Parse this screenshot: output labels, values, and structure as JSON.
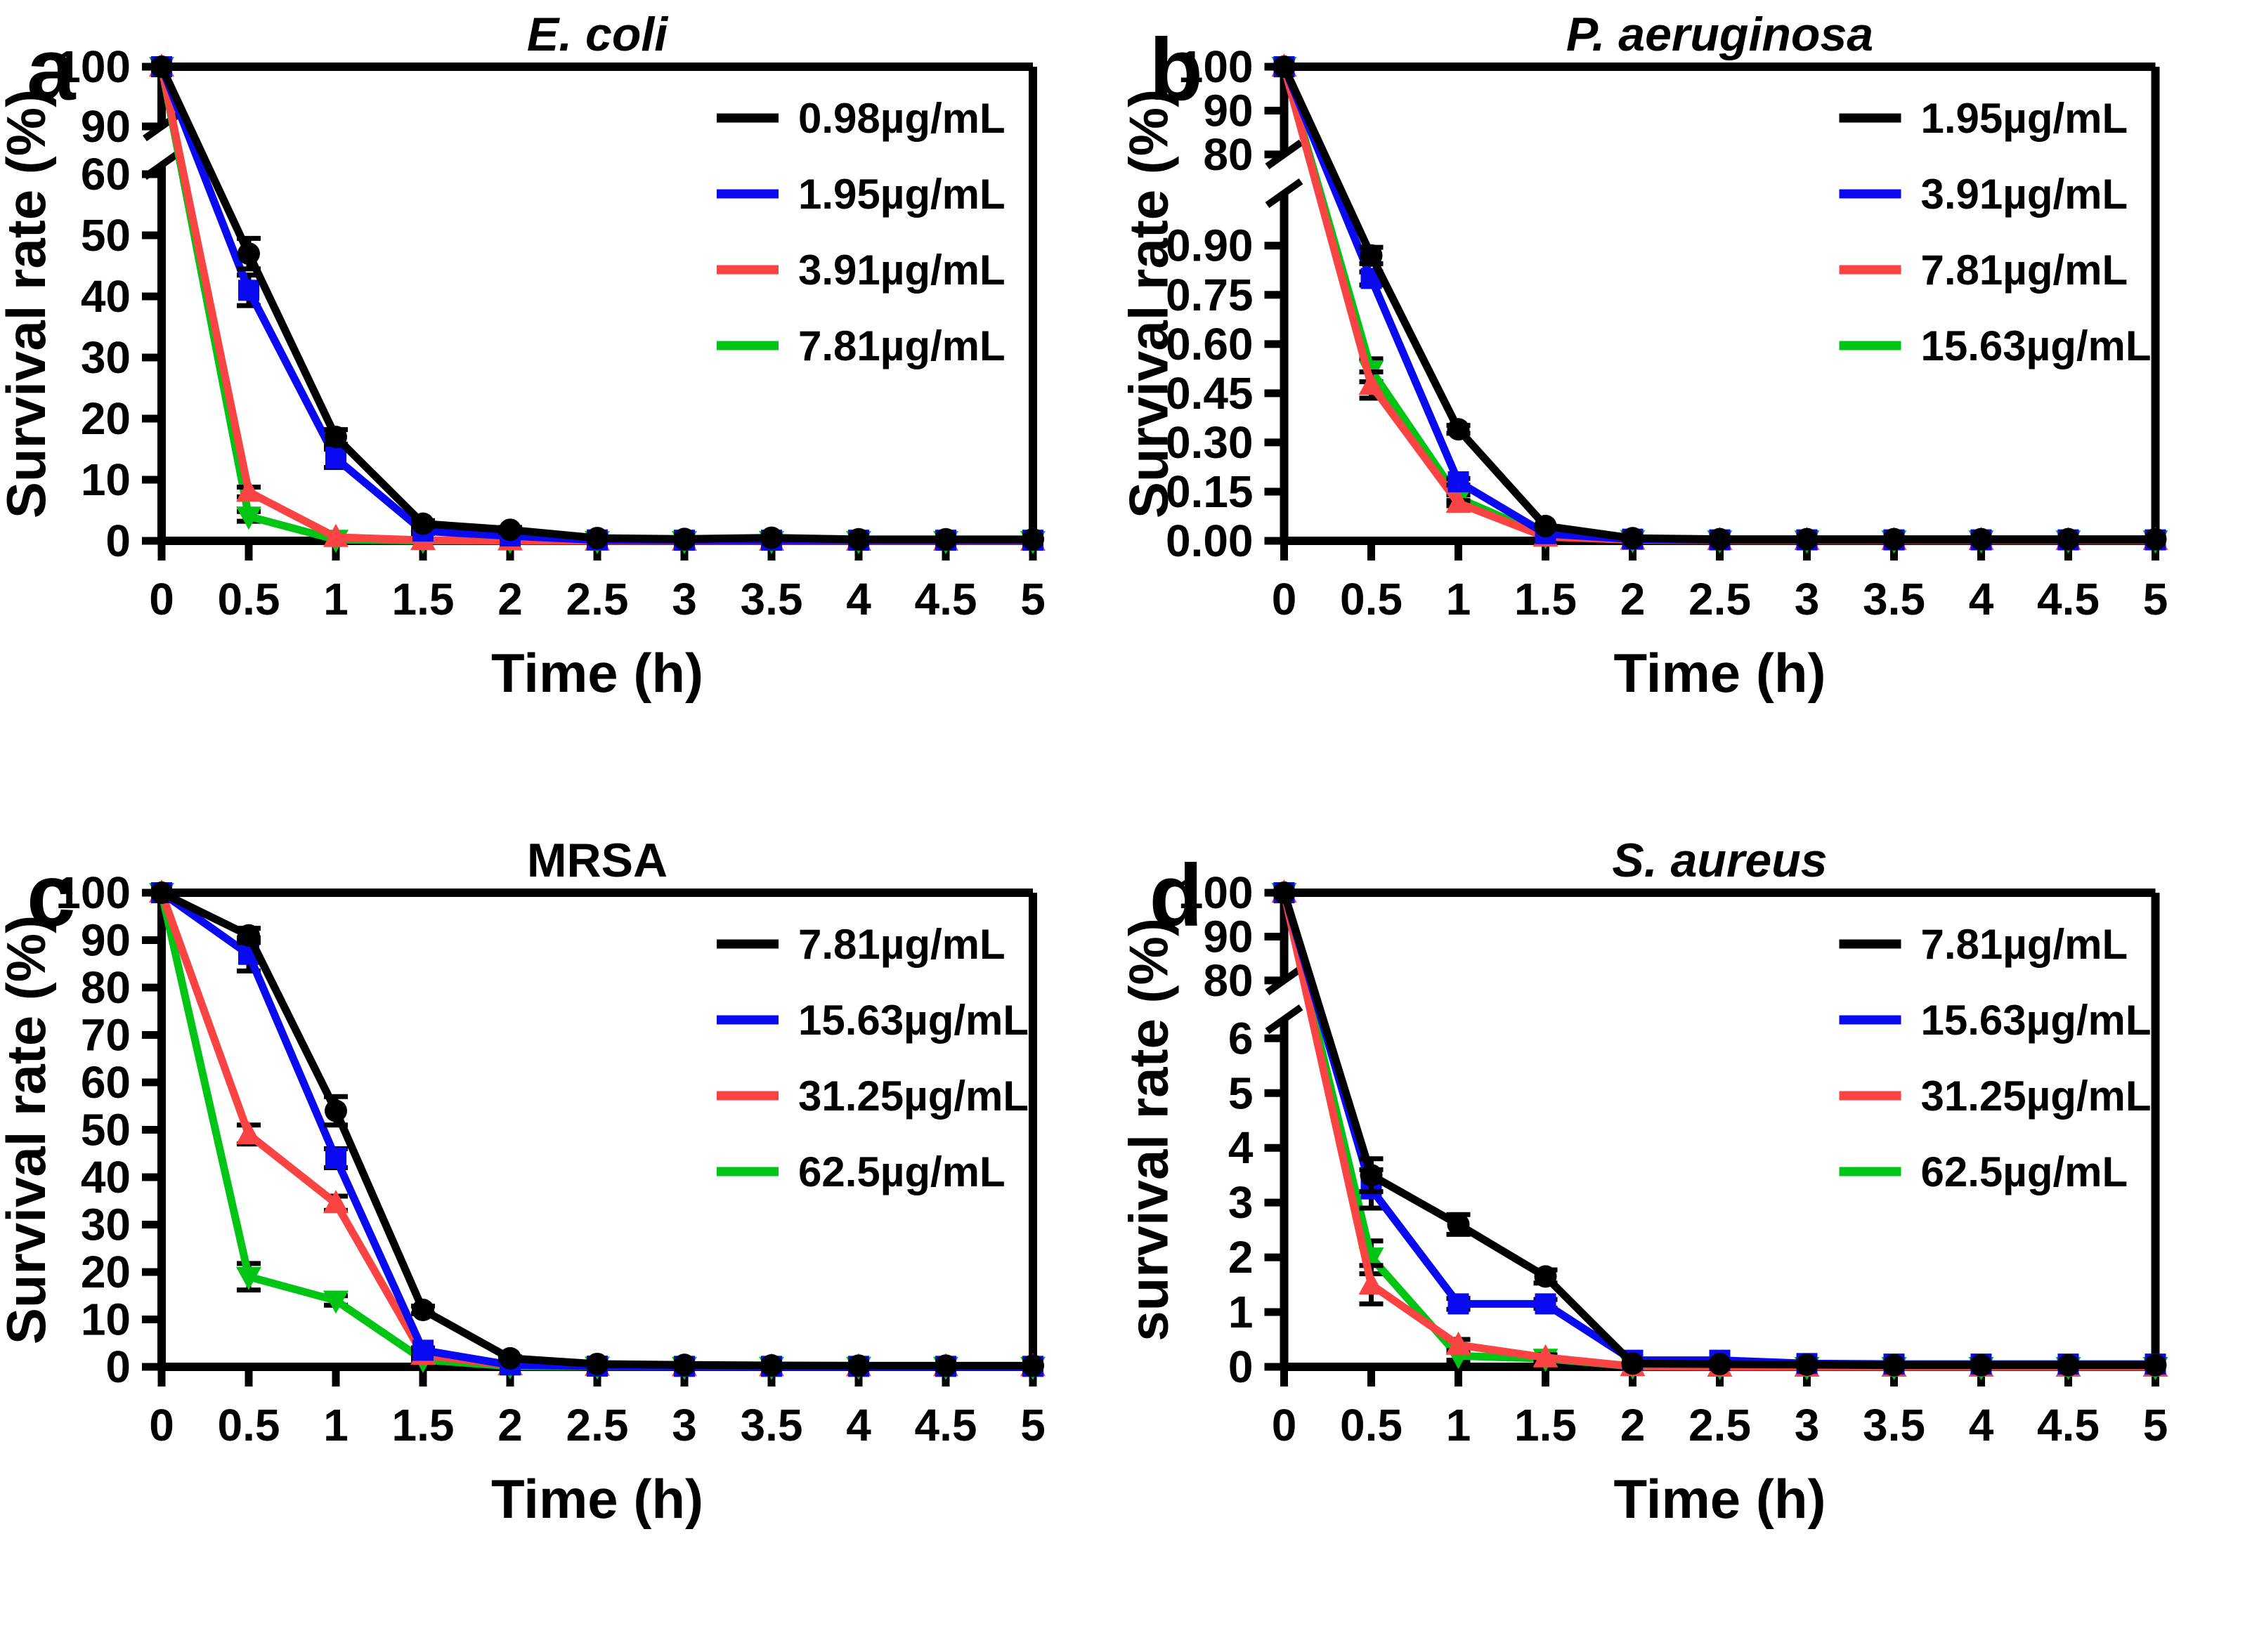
{
  "figure": {
    "background": "#ffffff"
  },
  "chart_data": [
    {
      "type": "line",
      "panel_letter": "a",
      "title": "E. coli",
      "title_style": "italic",
      "xlabel": "Time (h)",
      "ylabel": "Survival rate (%)",
      "xlim": [
        0,
        5
      ],
      "x": [
        0,
        0.5,
        1,
        1.5,
        2,
        2.5,
        3,
        3.5,
        4,
        4.5,
        5
      ],
      "x_tick_labels": [
        "0",
        "0.5",
        "1",
        "1.5",
        "2",
        "2.5",
        "3",
        "3.5",
        "4",
        "4.5",
        "5"
      ],
      "y_axis_break": true,
      "y_segments": [
        {
          "range": [
            90,
            100
          ],
          "frac": 0.126,
          "ticks": [
            100,
            90
          ],
          "tick_labels": [
            "100",
            "90"
          ]
        },
        {
          "range": [
            0,
            61.5
          ],
          "frac": 0.7926,
          "ticks": [
            60,
            50,
            40,
            30,
            20,
            10,
            0
          ],
          "tick_labels": [
            "60",
            "50",
            "40",
            "30",
            "20",
            "10",
            "0"
          ]
        }
      ],
      "legend_position": "top-right",
      "series": [
        {
          "label": "0.98µg/mL",
          "color": "#000000",
          "marker": "circle",
          "values": [
            100,
            47,
            17,
            2.8,
            1.8,
            0.45,
            0.3,
            0.5,
            0.25,
            0.25,
            0.25
          ],
          "errors": [
            0,
            2.5,
            1.2,
            0.5,
            0.4,
            0,
            0,
            0,
            0,
            0,
            0
          ]
        },
        {
          "label": "1.95µg/mL",
          "color": "#0a0af0",
          "marker": "square",
          "values": [
            100,
            41,
            13.5,
            1.6,
            0.8,
            0.15,
            0.1,
            0.1,
            0.1,
            0.1,
            0.1
          ],
          "errors": [
            0,
            2.5,
            1.5,
            0.4,
            0,
            0,
            0,
            0,
            0,
            0,
            0
          ]
        },
        {
          "label": "3.91µg/mL",
          "color": "#fa4343",
          "marker": "triangle-up",
          "values": [
            100,
            8,
            0.6,
            0.1,
            0.05,
            0,
            0,
            0,
            0,
            0,
            0
          ],
          "errors": [
            0,
            0.8,
            0,
            0,
            0,
            0,
            0,
            0,
            0,
            0,
            0
          ]
        },
        {
          "label": "7.81µg/mL",
          "color": "#00c514",
          "marker": "triangle-down",
          "values": [
            100,
            4,
            0.2,
            0.05,
            0,
            0,
            0,
            0,
            0,
            0,
            0
          ],
          "errors": [
            0,
            0.8,
            0,
            0,
            0,
            0,
            0,
            0,
            0,
            0,
            0
          ]
        }
      ]
    },
    {
      "type": "line",
      "panel_letter": "b",
      "title": "P. aeruginosa",
      "title_style": "italic",
      "xlabel": "Time (h)",
      "ylabel": "Survival rate (%)",
      "xlim": [
        0,
        5
      ],
      "x": [
        0,
        0.5,
        1,
        1.5,
        2,
        2.5,
        3,
        3.5,
        4,
        4.5,
        5
      ],
      "x_tick_labels": [
        "0",
        "0.5",
        "1",
        "1.5",
        "2",
        "2.5",
        "3",
        "3.5",
        "4",
        "4.5",
        "5"
      ],
      "y_axis_break": true,
      "y_segments": [
        {
          "range": [
            80,
            100
          ],
          "frac": 0.185,
          "ticks": [
            100,
            90,
            80
          ],
          "tick_labels": [
            "100",
            "90",
            "80"
          ]
        },
        {
          "range": [
            0,
            1.06
          ],
          "frac": 0.7333,
          "ticks": [
            0.9,
            0.75,
            0.6,
            0.45,
            0.3,
            0.15,
            0
          ],
          "tick_labels": [
            "0.90",
            "0.75",
            "0.60",
            "0.45",
            "0.30",
            "0.15",
            "0.00"
          ]
        }
      ],
      "legend_position": "top-right",
      "series": [
        {
          "label": "1.95µg/mL",
          "color": "#000000",
          "marker": "circle",
          "values": [
            100,
            0.87,
            0.34,
            0.045,
            0.008,
            0.005,
            0.005,
            0.005,
            0.005,
            0.005,
            0.005
          ],
          "errors": [
            0,
            0.025,
            0.012,
            0,
            0,
            0,
            0,
            0,
            0,
            0,
            0
          ]
        },
        {
          "label": "3.91µg/mL",
          "color": "#0a0af0",
          "marker": "square",
          "values": [
            100,
            0.8,
            0.18,
            0.022,
            0.005,
            0.003,
            0.003,
            0.003,
            0.003,
            0.003,
            0.003
          ],
          "errors": [
            0,
            0.02,
            0.01,
            0,
            0,
            0,
            0,
            0,
            0,
            0,
            0
          ]
        },
        {
          "label": "7.81µg/mL",
          "color": "#fa4343",
          "marker": "triangle-up",
          "values": [
            100,
            0.475,
            0.115,
            0.012,
            0.003,
            0.002,
            0.002,
            0.002,
            0.002,
            0.002,
            0.002
          ],
          "errors": [
            0,
            0.04,
            0.008,
            0,
            0,
            0,
            0,
            0,
            0,
            0,
            0
          ]
        },
        {
          "label": "15.63µg/mL",
          "color": "#00c514",
          "marker": "triangle-down",
          "values": [
            100,
            0.52,
            0.13,
            0.015,
            0.003,
            0.002,
            0.002,
            0.002,
            0.002,
            0.002,
            0.002
          ],
          "errors": [
            0,
            0.035,
            0.01,
            0,
            0,
            0,
            0,
            0,
            0,
            0,
            0
          ]
        }
      ]
    },
    {
      "type": "line",
      "panel_letter": "c",
      "title": "MRSA",
      "title_style": "normal",
      "xlabel": "Time (h)",
      "ylabel": "Survival rate (%)",
      "xlim": [
        0,
        5
      ],
      "x": [
        0,
        0.5,
        1,
        1.5,
        2,
        2.5,
        3,
        3.5,
        4,
        4.5,
        5
      ],
      "x_tick_labels": [
        "0",
        "0.5",
        "1",
        "1.5",
        "2",
        "2.5",
        "3",
        "3.5",
        "4",
        "4.5",
        "5"
      ],
      "y_axis_break": false,
      "y_segments": [
        {
          "range": [
            0,
            100
          ],
          "frac": 1.0,
          "ticks": [
            100,
            90,
            80,
            70,
            60,
            50,
            40,
            30,
            20,
            10,
            0
          ],
          "tick_labels": [
            "100",
            "90",
            "80",
            "70",
            "60",
            "50",
            "40",
            "30",
            "20",
            "10",
            "0"
          ]
        }
      ],
      "legend_position": "top-right",
      "series": [
        {
          "label": "7.81µg/mL",
          "color": "#000000",
          "marker": "circle",
          "values": [
            100,
            91,
            54,
            12,
            1.8,
            0.6,
            0.4,
            0.3,
            0.25,
            0.25,
            0.25
          ],
          "errors": [
            0,
            1.5,
            3,
            0.8,
            0.3,
            0,
            0,
            0,
            0,
            0,
            0
          ]
        },
        {
          "label": "15.63µg/mL",
          "color": "#0a0af0",
          "marker": "square",
          "values": [
            100,
            87,
            44,
            3.5,
            0.4,
            0.15,
            0.1,
            0.1,
            0.1,
            0.1,
            0.1
          ],
          "errors": [
            0,
            3.5,
            2,
            0.5,
            0,
            0,
            0,
            0,
            0,
            0,
            0
          ]
        },
        {
          "label": "31.25µg/mL",
          "color": "#fa4343",
          "marker": "triangle-up",
          "values": [
            100,
            49,
            34.5,
            2.5,
            0.3,
            0.15,
            0.1,
            0.1,
            0.1,
            0.1,
            0.1
          ],
          "errors": [
            0,
            2,
            1.5,
            0.4,
            0,
            0,
            0,
            0,
            0,
            0,
            0
          ]
        },
        {
          "label": "62.5µg/mL",
          "color": "#00c514",
          "marker": "triangle-down",
          "values": [
            100,
            19,
            14,
            1.5,
            0.15,
            0.1,
            0.05,
            0.05,
            0.05,
            0.05,
            0.05
          ],
          "errors": [
            0,
            2.8,
            1,
            0.3,
            0,
            0,
            0,
            0,
            0,
            0,
            0
          ]
        }
      ]
    },
    {
      "type": "line",
      "panel_letter": "d",
      "title": "S. aureus",
      "title_style": "italic",
      "xlabel": "Time (h)",
      "ylabel": "survival rate (%)",
      "xlim": [
        0,
        5
      ],
      "x": [
        0,
        0.5,
        1,
        1.5,
        2,
        2.5,
        3,
        3.5,
        4,
        4.5,
        5
      ],
      "x_tick_labels": [
        "0",
        "0.5",
        "1",
        "1.5",
        "2",
        "2.5",
        "3",
        "3.5",
        "4",
        "4.5",
        "5"
      ],
      "y_axis_break": true,
      "y_segments": [
        {
          "range": [
            80,
            100
          ],
          "frac": 0.185,
          "ticks": [
            100,
            90,
            80
          ],
          "tick_labels": [
            "100",
            "90",
            "80"
          ]
        },
        {
          "range": [
            0,
            6.35
          ],
          "frac": 0.7333,
          "ticks": [
            6,
            5,
            4,
            3,
            2,
            1,
            0
          ],
          "tick_labels": [
            "6",
            "5",
            "4",
            "3",
            "2",
            "1",
            "0"
          ]
        }
      ],
      "legend_position": "top-right",
      "series": [
        {
          "label": "7.81µg/mL",
          "color": "#000000",
          "marker": "circle",
          "values": [
            100,
            3.5,
            2.6,
            1.65,
            0.06,
            0.05,
            0.04,
            0.03,
            0.03,
            0.03,
            0.03
          ],
          "errors": [
            0,
            0.3,
            0.18,
            0.12,
            0,
            0,
            0,
            0,
            0,
            0,
            0
          ]
        },
        {
          "label": "15.63µg/mL",
          "color": "#0a0af0",
          "marker": "square",
          "values": [
            100,
            3.25,
            1.15,
            1.15,
            0.12,
            0.12,
            0.06,
            0.05,
            0.05,
            0.05,
            0.05
          ],
          "errors": [
            0,
            0.35,
            0.1,
            0.08,
            0,
            0,
            0,
            0,
            0,
            0,
            0
          ]
        },
        {
          "label": "31.25µg/mL",
          "color": "#fa4343",
          "marker": "triangle-up",
          "values": [
            100,
            1.5,
            0.4,
            0.17,
            0.01,
            0,
            0,
            0,
            0,
            0,
            0
          ],
          "errors": [
            0,
            0.35,
            0.1,
            0.05,
            0,
            0,
            0,
            0,
            0,
            0,
            0
          ]
        },
        {
          "label": "62.5µg/mL",
          "color": "#00c514",
          "marker": "triangle-down",
          "values": [
            100,
            2.0,
            0.2,
            0.15,
            0.01,
            0,
            0,
            0,
            0,
            0,
            0
          ],
          "errors": [
            0,
            0.3,
            0.08,
            0.04,
            0,
            0,
            0,
            0,
            0,
            0,
            0
          ]
        }
      ]
    }
  ]
}
